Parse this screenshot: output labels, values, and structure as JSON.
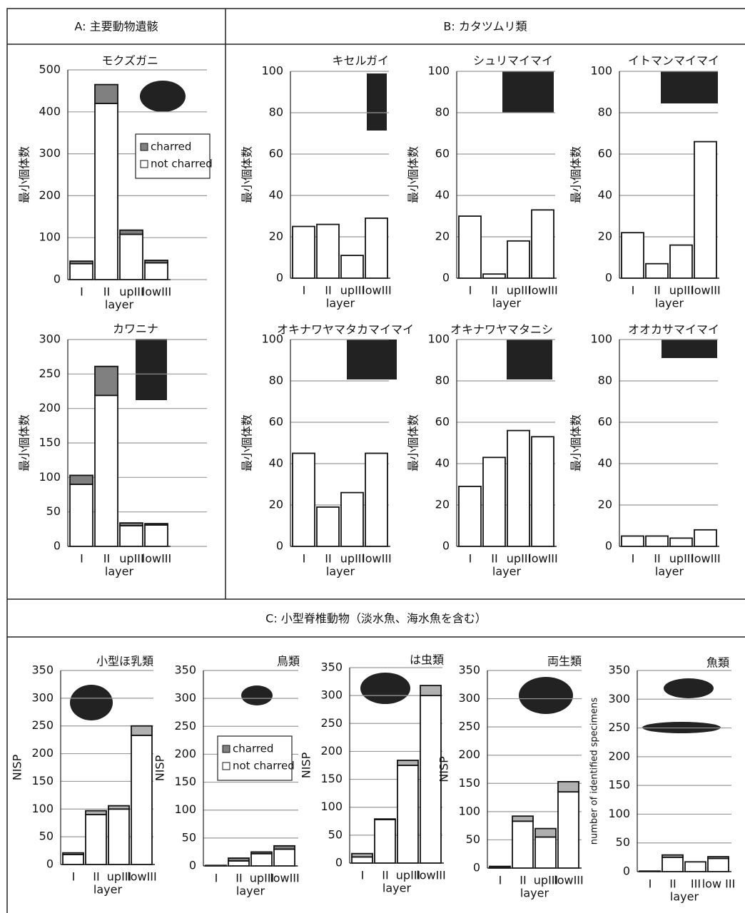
{
  "panels": [
    {
      "title": "A: 主要動物遺骸"
    },
    {
      "title": "B: カタツムリ類"
    },
    {
      "title": "C: 小型脊椎動物（淡水魚、海水魚を含む）"
    }
  ],
  "chart_data": [
    {
      "type": "stacked_bar",
      "title": "モクズガニ",
      "ylabel": "最小個体数",
      "xlabel": "layer",
      "categories": [
        "I",
        "II",
        "upIII",
        "lowIII"
      ],
      "series": [
        {
          "name": "not charred",
          "color": "#ffffff",
          "values": [
            38,
            420,
            108,
            40
          ]
        },
        {
          "name": "charred",
          "color": "#808080",
          "values": [
            6,
            45,
            10,
            6
          ]
        }
      ],
      "ylim": [
        0,
        500
      ],
      "yticks": [
        0,
        100,
        200,
        300,
        400,
        500
      ],
      "grid": true,
      "legend": "upper right"
    },
    {
      "type": "stacked_bar",
      "title": "カワニナ",
      "ylabel": "最小個体数",
      "xlabel": "layer",
      "categories": [
        "I",
        "II",
        "upIII",
        "lowIII"
      ],
      "series": [
        {
          "color": "#ffffff",
          "values": [
            90,
            219,
            30,
            31
          ]
        },
        {
          "color": "#808080",
          "values": [
            13,
            42,
            4,
            2
          ]
        }
      ],
      "ylim": [
        0,
        300
      ],
      "yticks": [
        0,
        50,
        100,
        150,
        200,
        250,
        300
      ],
      "grid": true
    },
    {
      "type": "bar",
      "title": "キセルガイ",
      "ylabel": "最小個体数",
      "xlabel": "layer",
      "categories": [
        "I",
        "II",
        "upIII",
        "lowIII"
      ],
      "values": [
        25,
        26,
        11,
        29
      ],
      "color": "#ffffff",
      "ylim": [
        0,
        100
      ],
      "yticks": [
        0,
        20,
        40,
        60,
        80,
        100
      ],
      "grid": true
    },
    {
      "type": "bar",
      "title": "シュリマイマイ",
      "ylabel": "最小個体数",
      "xlabel": "layer",
      "categories": [
        "I",
        "II",
        "upIII",
        "lowIII"
      ],
      "values": [
        30,
        2,
        18,
        33
      ],
      "color": "#ffffff",
      "ylim": [
        0,
        100
      ],
      "yticks": [
        0,
        20,
        40,
        60,
        80,
        100
      ],
      "grid": true
    },
    {
      "type": "bar",
      "title": "イトマンマイマイ",
      "ylabel": "最小個体数",
      "xlabel": "layer",
      "categories": [
        "I",
        "II",
        "upIII",
        "lowIII"
      ],
      "values": [
        22,
        7,
        16,
        66
      ],
      "color": "#ffffff",
      "ylim": [
        0,
        100
      ],
      "yticks": [
        0,
        20,
        40,
        60,
        80,
        100
      ],
      "grid": true
    },
    {
      "type": "bar",
      "title": "オキナワヤマタカマイマイ",
      "ylabel": "最小個体数",
      "xlabel": "layer",
      "categories": [
        "I",
        "II",
        "upIII",
        "lowIII"
      ],
      "values": [
        45,
        19,
        26,
        45
      ],
      "color": "#ffffff",
      "ylim": [
        0,
        100
      ],
      "yticks": [
        0,
        20,
        40,
        60,
        80,
        100
      ],
      "grid": true
    },
    {
      "type": "bar",
      "title": "オキナワヤマタニシ",
      "ylabel": "最小個体数",
      "xlabel": "layer",
      "categories": [
        "I",
        "II",
        "upIII",
        "lowIII"
      ],
      "values": [
        29,
        43,
        56,
        53
      ],
      "color": "#ffffff",
      "ylim": [
        0,
        100
      ],
      "yticks": [
        0,
        20,
        40,
        60,
        80,
        100
      ],
      "grid": true
    },
    {
      "type": "bar",
      "title": "オオカサマイマイ",
      "ylabel": "最小個体数",
      "xlabel": "layer",
      "categories": [
        "I",
        "II",
        "upIII",
        "lowIII"
      ],
      "values": [
        5,
        5,
        4,
        8
      ],
      "color": "#ffffff",
      "ylim": [
        0,
        100
      ],
      "yticks": [
        0,
        20,
        40,
        60,
        80,
        100
      ],
      "grid": true
    },
    {
      "type": "stacked_bar",
      "title": "小型ほ乳類",
      "ylabel": "NISP",
      "xlabel": "layer",
      "categories": [
        "I",
        "II",
        "upIII",
        "lowIII"
      ],
      "series": [
        {
          "color": "#ffffff",
          "values": [
            18,
            90,
            100,
            233
          ]
        },
        {
          "color": "#b0b0b0",
          "values": [
            3,
            7,
            6,
            17
          ]
        }
      ],
      "ylim": [
        0,
        350
      ],
      "yticks": [
        0,
        50,
        100,
        150,
        200,
        250,
        300,
        350
      ],
      "grid": true
    },
    {
      "type": "stacked_bar",
      "title": "鳥類",
      "ylabel": "NISP",
      "xlabel": "layer",
      "categories": [
        "I",
        "II",
        "upIII",
        "lowIII"
      ],
      "series": [
        {
          "name": "not charred",
          "color": "#ffffff",
          "values": [
            1,
            9,
            22,
            30
          ]
        },
        {
          "name": "charred",
          "color": "#808080",
          "values": [
            0,
            5,
            3,
            6
          ]
        }
      ],
      "ylim": [
        0,
        350
      ],
      "yticks": [
        0,
        50,
        100,
        150,
        200,
        250,
        300,
        350
      ],
      "grid": true,
      "legend": "center"
    },
    {
      "type": "stacked_bar",
      "title": "は虫類",
      "ylabel": "NISP",
      "xlabel": "layer",
      "categories": [
        "I",
        "II",
        "upIII",
        "lowIII"
      ],
      "series": [
        {
          "color": "#ffffff",
          "values": [
            11,
            78,
            175,
            300
          ]
        },
        {
          "color": "#b0b0b0",
          "values": [
            6,
            1,
            9,
            18
          ]
        }
      ],
      "ylim": [
        0,
        350
      ],
      "yticks": [
        0,
        50,
        100,
        150,
        200,
        250,
        300,
        350
      ],
      "grid": true
    },
    {
      "type": "stacked_bar",
      "title": "両生類",
      "ylabel": "NISP",
      "xlabel": "layer",
      "categories": [
        "I",
        "II",
        "upIII",
        "lowIII"
      ],
      "series": [
        {
          "color": "#ffffff",
          "values": [
            2,
            83,
            55,
            135
          ]
        },
        {
          "color": "#b0b0b0",
          "values": [
            1,
            9,
            15,
            18
          ]
        }
      ],
      "ylim": [
        0,
        350
      ],
      "yticks": [
        0,
        50,
        100,
        150,
        200,
        250,
        300,
        350
      ],
      "grid": true
    },
    {
      "type": "stacked_bar",
      "title": "魚類",
      "ylabel": "number of identified specimens",
      "xlabel": "layer",
      "categories": [
        "I",
        "II",
        "III",
        "low III"
      ],
      "series": [
        {
          "color": "#ffffff",
          "values": [
            1,
            25,
            17,
            23
          ]
        },
        {
          "color": "#b0b0b0",
          "values": [
            0,
            4,
            0,
            3
          ]
        }
      ],
      "ylim": [
        0,
        350
      ],
      "yticks": [
        0,
        50,
        100,
        150,
        200,
        250,
        300,
        350
      ],
      "grid": true
    }
  ]
}
